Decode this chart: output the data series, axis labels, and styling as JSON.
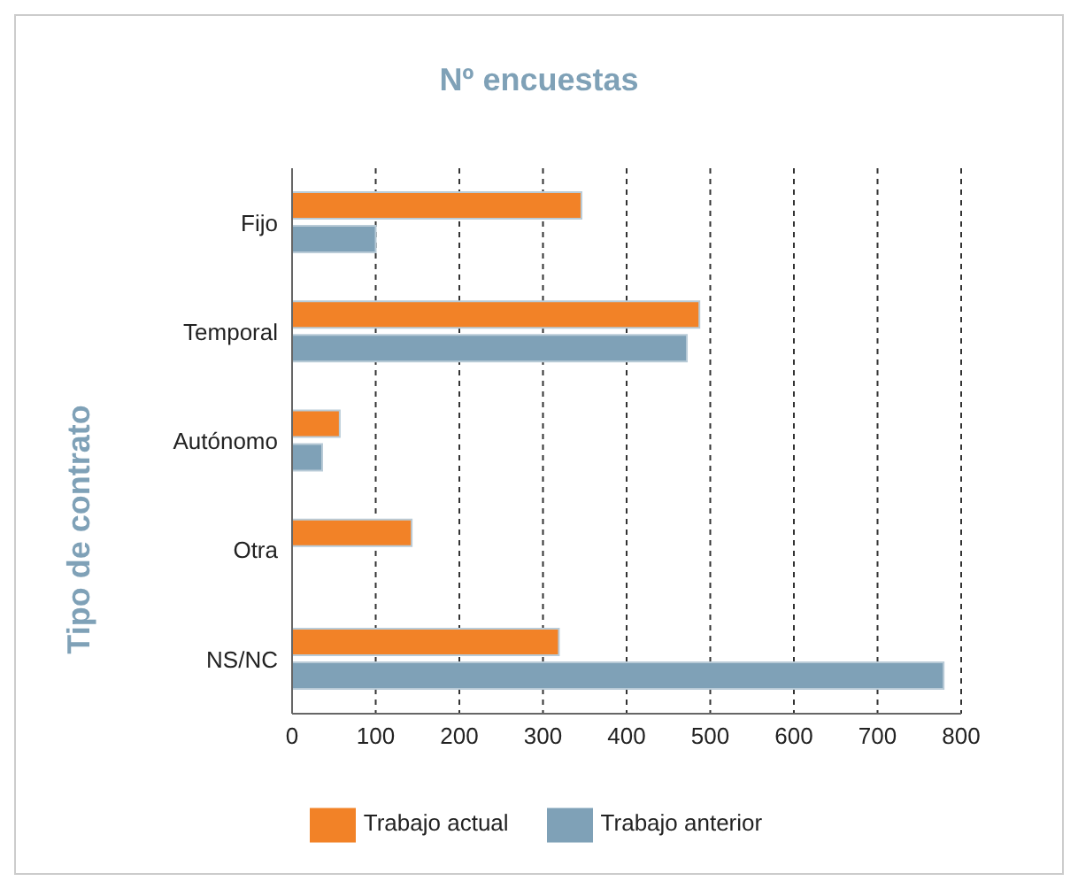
{
  "chart_data": {
    "type": "bar",
    "orientation": "horizontal",
    "title": "Nº encuestas",
    "ylabel": "Tipo de contrato",
    "categories": [
      "Fijo",
      "Temporal",
      "Autónomo",
      "Otra",
      "NS/NC"
    ],
    "series": [
      {
        "name": "Trabajo actual",
        "color": "#f28227",
        "values": [
          346,
          487,
          57,
          143,
          319
        ]
      },
      {
        "name": "Trabajo anterior",
        "color": "#7fa1b7",
        "values": [
          100,
          472,
          36,
          0,
          779
        ]
      }
    ],
    "xlim": [
      0,
      800
    ],
    "xticks": [
      0,
      100,
      200,
      300,
      400,
      500,
      600,
      700,
      800
    ],
    "grid": "x",
    "legend": "bottom"
  }
}
